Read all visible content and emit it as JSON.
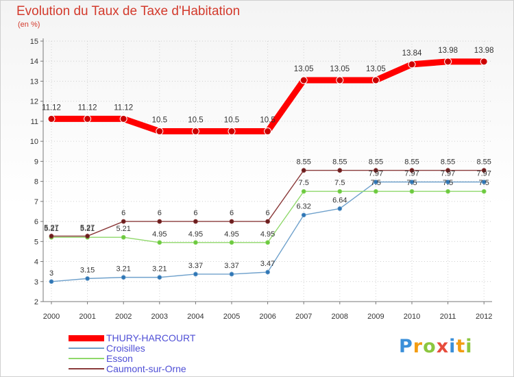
{
  "header": {
    "title": "Evolution du Taux de Taxe d'Habitation",
    "unit_label": "(en %)"
  },
  "brand": {
    "letters": [
      "P",
      "r",
      "o",
      "x",
      "i",
      "t",
      "i"
    ],
    "colors": [
      "#3a8fd9",
      "#f39c12",
      "#8cc63f",
      "#e74c3c",
      "#3a8fd9",
      "#f39c12",
      "#8cc63f"
    ]
  },
  "chart_data": {
    "type": "line",
    "title": "Evolution du Taux de Taxe d'Habitation",
    "ylabel": "(en %)",
    "xlabel": "",
    "x": [
      "2000",
      "2001",
      "2002",
      "2003",
      "2004",
      "2005",
      "2006",
      "2007",
      "2008",
      "2009",
      "2010",
      "2011",
      "2012"
    ],
    "ylim": [
      2,
      15
    ],
    "yticks": [
      2,
      3,
      4,
      5,
      6,
      7,
      8,
      9,
      10,
      11,
      12,
      13,
      14,
      15
    ],
    "grid": true,
    "series": [
      {
        "name": "THURY-HARCOURT",
        "color": "#ff0000",
        "marker": "#cc0000",
        "bold": true,
        "values": [
          11.12,
          11.12,
          11.12,
          10.5,
          10.5,
          10.5,
          10.5,
          13.05,
          13.05,
          13.05,
          13.84,
          13.98,
          13.98
        ],
        "labels": [
          "11.12",
          "11.12",
          "11.12",
          "10.5",
          "10.5",
          "10.5",
          "10.5",
          "13.05",
          "13.05",
          "13.05",
          "13.84",
          "13.98",
          "13.98"
        ]
      },
      {
        "name": "Croisilles",
        "color": "#6fa1cc",
        "marker": "#2f76b5",
        "bold": false,
        "values": [
          3,
          3.15,
          3.21,
          3.21,
          3.37,
          3.37,
          3.47,
          6.32,
          6.64,
          7.97,
          7.97,
          7.97,
          7.97
        ],
        "labels": [
          "3",
          "3.15",
          "3.21",
          "3.21",
          "3.37",
          "3.37",
          "3.47",
          "6.32",
          "6.64",
          "7.97",
          "7.97",
          "7.97",
          "7.97"
        ]
      },
      {
        "name": "Esson",
        "color": "#8fd86a",
        "marker": "#6cc93e",
        "bold": false,
        "values": [
          5.21,
          5.21,
          5.21,
          4.95,
          4.95,
          4.95,
          4.95,
          7.5,
          7.5,
          7.5,
          7.5,
          7.5,
          7.5
        ],
        "labels": [
          "5.21",
          "5.21",
          "5.21",
          "4.95",
          "4.95",
          "4.95",
          "4.95",
          "7.5",
          "7.5",
          "7.5",
          "7.5",
          "7.5",
          "7.5"
        ]
      },
      {
        "name": "Caumont-sur-Orne",
        "color": "#8a3a3a",
        "marker": "#6b1e1e",
        "bold": false,
        "values": [
          5.27,
          5.27,
          6,
          6,
          6,
          6,
          6,
          8.55,
          8.55,
          8.55,
          8.55,
          8.55,
          8.55
        ],
        "labels": [
          "5.27",
          "5.27",
          "6",
          "6",
          "6",
          "6",
          "6",
          "8.55",
          "8.55",
          "8.55",
          "8.55",
          "8.55",
          "8.55"
        ]
      }
    ]
  }
}
